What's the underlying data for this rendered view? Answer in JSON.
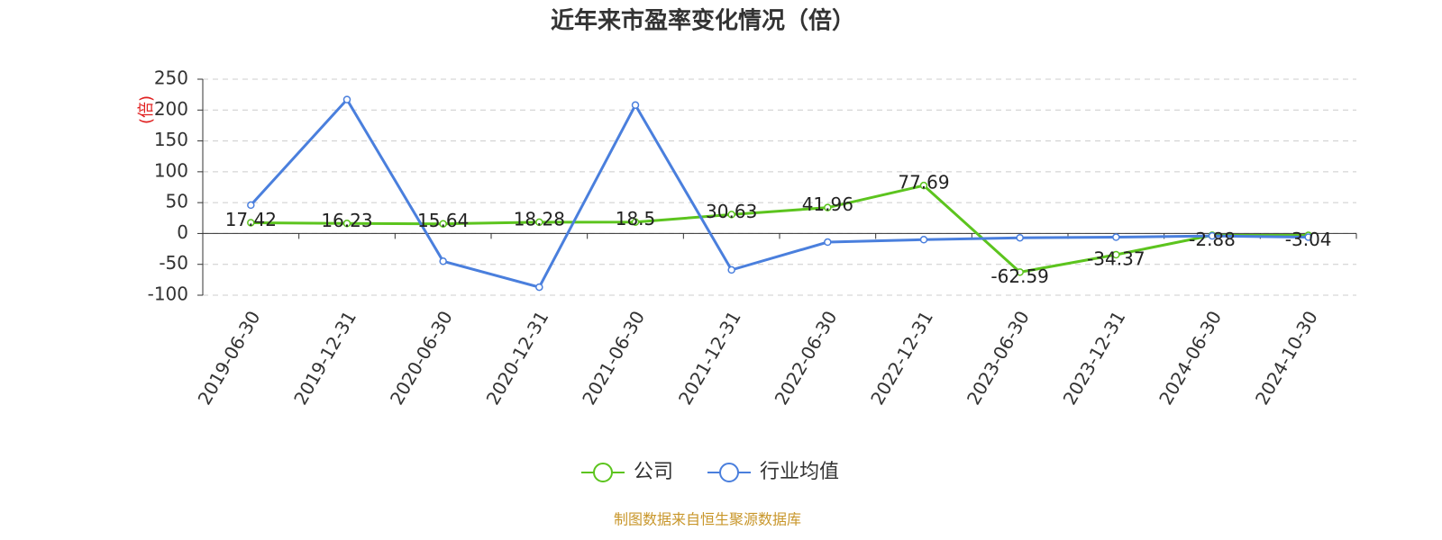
{
  "chart_data": {
    "type": "line",
    "title": "近年来市盈率变化情况（倍）",
    "y_label": "(倍)",
    "categories": [
      "2019-06-30",
      "2019-12-31",
      "2020-06-30",
      "2020-12-31",
      "2021-06-30",
      "2021-12-31",
      "2022-06-30",
      "2022-12-31",
      "2023-06-30",
      "2023-12-31",
      "2024-06-30",
      "2024-10-30"
    ],
    "series": [
      {
        "name": "公司",
        "color": "#5cc41e",
        "values": [
          17.42,
          16.23,
          15.64,
          18.28,
          18.5,
          30.63,
          41.96,
          77.69,
          -62.59,
          -34.37,
          -2.88,
          -3.04
        ]
      },
      {
        "name": "行业均值",
        "color": "#4a7fdd",
        "values": [
          46,
          217,
          -45,
          -87,
          208,
          -59,
          -14,
          -10,
          -7,
          -6,
          -4,
          -6
        ]
      }
    ],
    "ylim": [
      -100,
      250
    ],
    "yticks": [
      -100,
      -50,
      0,
      50,
      100,
      150,
      200,
      250
    ],
    "grid": true,
    "source": "制图数据来自恒生聚源数据库"
  }
}
